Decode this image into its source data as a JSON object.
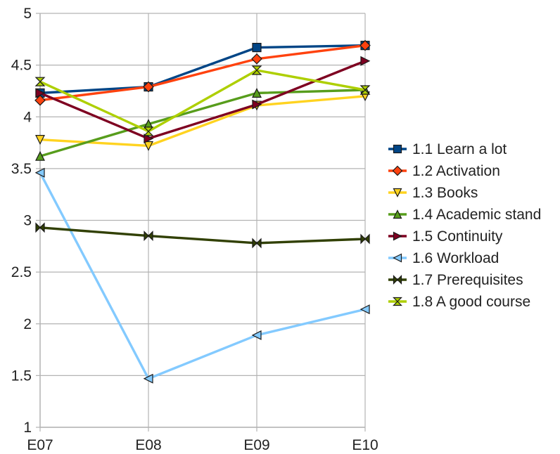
{
  "chart_data": {
    "type": "line",
    "title": "",
    "xlabel": "",
    "ylabel": "",
    "categories": [
      "E07",
      "E08",
      "E09",
      "E10"
    ],
    "ylim": [
      1,
      5
    ],
    "yticks": [
      "1",
      "1.5",
      "2",
      "2.5",
      "3",
      "3.5",
      "4",
      "4.5",
      "5"
    ],
    "grid": true,
    "legend_position": "right",
    "series": [
      {
        "name": "1.1 Learn a lot",
        "values": [
          4.23,
          4.29,
          4.67,
          4.69
        ],
        "color": "#004586",
        "marker": "square"
      },
      {
        "name": "1.2 Activation",
        "values": [
          4.16,
          4.29,
          4.56,
          4.69
        ],
        "color": "#ff420e",
        "marker": "diamond"
      },
      {
        "name": "1.3 Books",
        "values": [
          3.78,
          3.72,
          4.11,
          4.2
        ],
        "color": "#ffd320",
        "marker": "triangle-down"
      },
      {
        "name": "1.4 Academic stand",
        "values": [
          3.62,
          3.93,
          4.23,
          4.26
        ],
        "color": "#579d1c",
        "marker": "triangle-up"
      },
      {
        "name": "1.5 Continuity",
        "values": [
          4.23,
          3.79,
          4.12,
          4.54
        ],
        "color": "#7e0021",
        "marker": "triangle-right"
      },
      {
        "name": "1.6 Workload",
        "values": [
          3.46,
          1.47,
          1.89,
          2.14
        ],
        "color": "#83caff",
        "marker": "triangle-left"
      },
      {
        "name": "1.7 Prerequisites",
        "values": [
          2.93,
          2.85,
          2.78,
          2.82
        ],
        "color": "#314004",
        "marker": "bowtie"
      },
      {
        "name": "1.8 A good course",
        "values": [
          4.34,
          3.86,
          4.45,
          4.26
        ],
        "color": "#aecf00",
        "marker": "hourglass"
      }
    ]
  }
}
